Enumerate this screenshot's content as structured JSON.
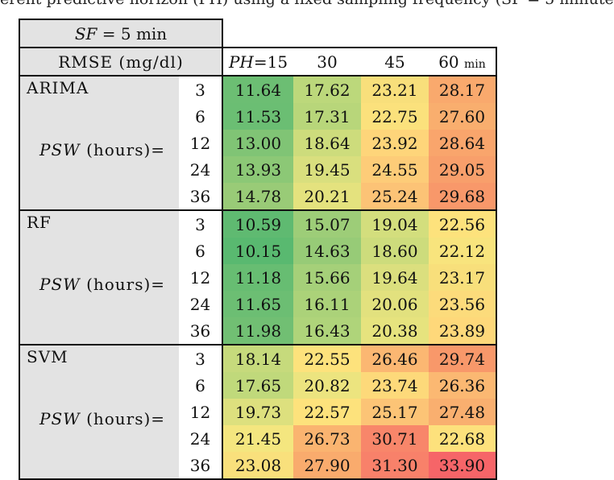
{
  "caption": "erent predictive horizon (PH) using a fixed sampling frequency (SF = 5 minute",
  "table": {
    "sf_label_math": "SF",
    "sf_label_rest": " = 5 min",
    "metric_label": "RMSE (mg/dl)",
    "ph_math": "PH",
    "ph_columns": [
      "=15",
      "30",
      "45",
      "60"
    ],
    "last_unit": "min",
    "psw_math": "PSW",
    "psw_rest": " (hours)=",
    "groups": [
      {
        "name": "ARIMA",
        "rows": [
          {
            "psw": "3",
            "values": [
              "11.64",
              "17.62",
              "23.21",
              "28.17"
            ],
            "colors": [
              "#6cbe73",
              "#bcd87b",
              "#f8df7b",
              "#f9a96d"
            ]
          },
          {
            "psw": "6",
            "values": [
              "11.53",
              "17.31",
              "22.75",
              "27.60"
            ],
            "colors": [
              "#6bbe73",
              "#b8d67a",
              "#fbe17c",
              "#f9ae6e"
            ]
          },
          {
            "psw": "12",
            "values": [
              "13.00",
              "18.64",
              "23.92",
              "28.64"
            ],
            "colors": [
              "#80c475",
              "#cddc7c",
              "#fed57a",
              "#f9a56c"
            ]
          },
          {
            "psw": "24",
            "values": [
              "13.93",
              "19.45",
              "24.55",
              "29.05"
            ],
            "colors": [
              "#8cc876",
              "#d9df7e",
              "#fdcc78",
              "#f89f6b"
            ]
          },
          {
            "psw": "36",
            "values": [
              "14.78",
              "20.21",
              "25.24",
              "29.68"
            ],
            "colors": [
              "#99cb77",
              "#e4e27e",
              "#fcc376",
              "#f8986a"
            ]
          }
        ]
      },
      {
        "name": "RF",
        "rows": [
          {
            "psw": "3",
            "values": [
              "10.59",
              "15.07",
              "19.04",
              "22.56"
            ],
            "colors": [
              "#5fba71",
              "#9dcd78",
              "#d3de7d",
              "#fde27c"
            ]
          },
          {
            "psw": "6",
            "values": [
              "10.15",
              "14.63",
              "18.60",
              "22.12"
            ],
            "colors": [
              "#59b970",
              "#97cb77",
              "#cddc7c",
              "#f8e47d"
            ]
          },
          {
            "psw": "12",
            "values": [
              "11.18",
              "15.66",
              "19.64",
              "23.17"
            ],
            "colors": [
              "#67bd72",
              "#a5d079",
              "#dbdf7e",
              "#f8df7b"
            ]
          },
          {
            "psw": "24",
            "values": [
              "11.65",
              "16.11",
              "20.06",
              "23.56"
            ],
            "colors": [
              "#6cbe73",
              "#abd279",
              "#e2e17e",
              "#fcdb7b"
            ]
          },
          {
            "psw": "36",
            "values": [
              "11.98",
              "16.43",
              "20.38",
              "23.89"
            ],
            "colors": [
              "#71bf73",
              "#afd47a",
              "#e6e37e",
              "#fed87a"
            ]
          }
        ]
      },
      {
        "name": "SVM",
        "rows": [
          {
            "psw": "3",
            "values": [
              "18.14",
              "22.55",
              "26.46",
              "29.74"
            ],
            "colors": [
              "#c6da7c",
              "#fde27c",
              "#fbb772",
              "#f8986a"
            ]
          },
          {
            "psw": "6",
            "values": [
              "17.65",
              "20.82",
              "23.74",
              "26.36"
            ],
            "colors": [
              "#c0d97b",
              "#ece47f",
              "#fdd97a",
              "#fbb872"
            ]
          },
          {
            "psw": "12",
            "values": [
              "19.73",
              "22.57",
              "25.17",
              "27.48"
            ],
            "colors": [
              "#dde07e",
              "#fde27c",
              "#fcc476",
              "#f9af6f"
            ]
          },
          {
            "psw": "24",
            "values": [
              "21.45",
              "26.73",
              "30.71",
              "22.68"
            ],
            "colors": [
              "#f4e67f",
              "#fab470",
              "#f8866a",
              "#fde17c"
            ]
          },
          {
            "psw": "36",
            "values": [
              "23.08",
              "27.90",
              "31.30",
              "33.90"
            ],
            "colors": [
              "#f9e07c",
              "#f9ab6d",
              "#f8816a",
              "#f66568"
            ]
          }
        ]
      }
    ]
  }
}
